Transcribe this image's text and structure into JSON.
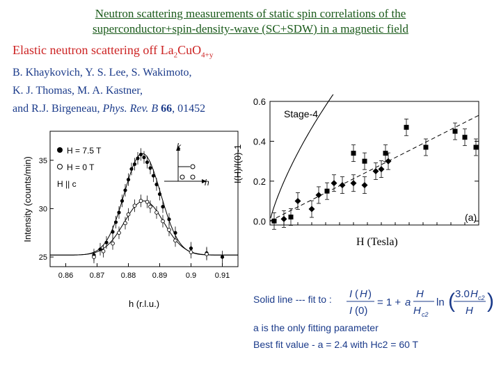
{
  "title_line1": "Neutron scattering measurements of static spin correlations of the",
  "title_line2": "superconductor+spin-density-wave (SC+SDW) in a magnetic field",
  "subtitle_pre": "Elastic neutron scattering off La",
  "subtitle_sub1": "2",
  "subtitle_mid": "CuO",
  "subtitle_sub2": "4+y",
  "authors_line1": "B. Khaykovich, Y. S. Lee, S. Wakimoto,",
  "authors_line2": "K. J. Thomas, M. A. Kastner,",
  "authors_line3_pre": "and R.J. Birgeneau,",
  "authors_journal": "Phys. Rev. B",
  "authors_volume": "66",
  "authors_page": ", 01452",
  "left_plot": {
    "legend_high": "H = 7.5 T",
    "legend_zero": "H = 0 T",
    "legend_orient": "H || c",
    "xlabel": "h (r.l.u.)",
    "ylabel": "Intensity (counts/min)",
    "inset_k": "k",
    "inset_h": "h"
  },
  "right_plot": {
    "label_stage": "Stage-4",
    "label_panel": "(a)",
    "ylabel": "I(H)/I(0)-1",
    "xlabel": "H (Tesla)"
  },
  "fit_label": "Solid line --- fit to :",
  "param_text": "a is the only fitting parameter",
  "best_fit_text": "Best fit value - a = 2.4 with Hc2 = 60 T",
  "chart_data": [
    {
      "type": "scatter",
      "title": "",
      "xlabel": "h (r.l.u.)",
      "ylabel": "Intensity (counts/min)",
      "xlim": [
        0.855,
        0.915
      ],
      "ylim": [
        24,
        38
      ],
      "xticks": [
        "0.86",
        "0.87",
        "0.88",
        "0.89",
        "0.9",
        "0.91"
      ],
      "yticks": [
        "25",
        "30",
        "35"
      ],
      "series": [
        {
          "name": "H = 7.5 T",
          "marker": "filled-circle",
          "x": [
            0.869,
            0.871,
            0.873,
            0.875,
            0.876,
            0.877,
            0.878,
            0.879,
            0.88,
            0.881,
            0.882,
            0.883,
            0.884,
            0.885,
            0.886,
            0.887,
            0.888,
            0.889,
            0.89,
            0.891,
            0.893,
            0.895,
            0.9,
            0.905,
            0.91
          ],
          "y": [
            25.2,
            25.8,
            26.5,
            27.6,
            28.6,
            29.6,
            30.8,
            31.9,
            33.0,
            34.1,
            34.6,
            35.2,
            35.6,
            35.3,
            34.8,
            34.2,
            33.4,
            32.5,
            31.5,
            30.2,
            28.9,
            27.5,
            25.9,
            25.4,
            25.0
          ]
        },
        {
          "name": "H = 0 T",
          "marker": "open-circle",
          "x": [
            0.869,
            0.872,
            0.875,
            0.877,
            0.879,
            0.88,
            0.882,
            0.884,
            0.886,
            0.887,
            0.889,
            0.891,
            0.893,
            0.895,
            0.9,
            0.905
          ],
          "y": [
            25.0,
            25.6,
            26.4,
            27.5,
            28.5,
            29.4,
            30.3,
            30.8,
            30.7,
            30.2,
            29.6,
            28.7,
            27.8,
            26.7,
            25.5,
            25.3
          ]
        }
      ]
    },
    {
      "type": "scatter",
      "title": "",
      "xlabel": "H (Tesla)",
      "ylabel": "I(H)/I(0)-1",
      "xlim": [
        0,
        15
      ],
      "ylim": [
        -0.02,
        0.6
      ],
      "yticks": [
        "0.0",
        "0.2",
        "0.4",
        "0.6"
      ],
      "series": [
        {
          "name": "Stage-4 squares",
          "marker": "filled-square",
          "x": [
            0.3,
            1.5,
            4.1,
            6.0,
            6.8,
            8.3,
            9.8,
            11.2,
            13.3,
            14.0,
            14.8
          ],
          "y": [
            0.0,
            0.02,
            0.15,
            0.34,
            0.3,
            0.34,
            0.47,
            0.37,
            0.45,
            0.42,
            0.37
          ]
        },
        {
          "name": "Stage-4 diamonds",
          "marker": "filled-diamond",
          "x": [
            1.0,
            2.0,
            3.0,
            3.5,
            4.6,
            5.2,
            6.0,
            6.8,
            7.6,
            8.0,
            8.5
          ],
          "y": [
            0.01,
            0.1,
            0.06,
            0.13,
            0.19,
            0.18,
            0.19,
            0.18,
            0.25,
            0.26,
            0.3
          ]
        }
      ],
      "fit_solid": "fit curve",
      "fit_dashed": "linear guide"
    }
  ]
}
